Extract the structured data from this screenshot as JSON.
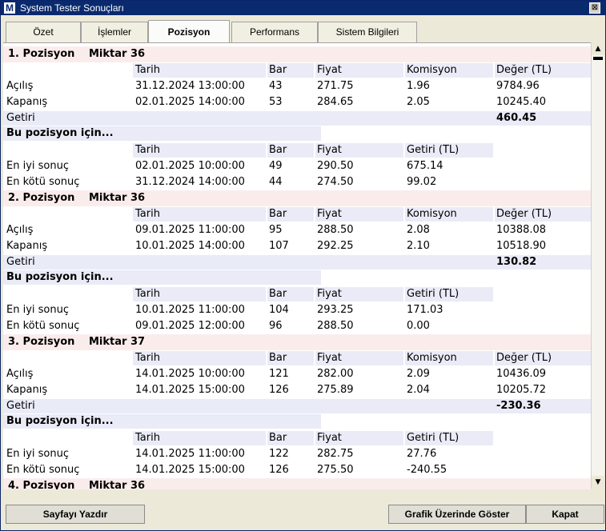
{
  "window": {
    "title": "System Tester Sonuçları",
    "icon_letter": "M",
    "close_glyph": "⊠"
  },
  "tabs": [
    {
      "label": "Özet"
    },
    {
      "label": "İşlemler"
    },
    {
      "label": "Pozisyon"
    },
    {
      "label": "Performans"
    },
    {
      "label": "Sistem Bilgileri"
    }
  ],
  "labels": {
    "miktar": "Miktar",
    "tarih": "Tarih",
    "bar": "Bar",
    "fiyat": "Fiyat",
    "komisyon": "Komisyon",
    "deger": "Değer (TL)",
    "getiri_tl": "Getiri (TL)",
    "acilis": "Açılış",
    "kapanis": "Kapanış",
    "getiri": "Getiri",
    "bu_pozisyon": "Bu pozisyon için...",
    "en_iyi": "En iyi sonuç",
    "en_kotu": "En kötü sonuç"
  },
  "positions": [
    {
      "title": "1. Pozisyon",
      "miktar": "36",
      "acilis": {
        "tarih": "31.12.2024 13:00:00",
        "bar": "43",
        "fiyat": "271.75",
        "komisyon": "1.96",
        "deger": "9784.96"
      },
      "kapanis": {
        "tarih": "02.01.2025 14:00:00",
        "bar": "53",
        "fiyat": "284.65",
        "komisyon": "2.05",
        "deger": "10245.40"
      },
      "getiri": "460.45",
      "en_iyi": {
        "tarih": "02.01.2025 10:00:00",
        "bar": "49",
        "fiyat": "290.50",
        "getiri": "675.14"
      },
      "en_kotu": {
        "tarih": "31.12.2024 14:00:00",
        "bar": "44",
        "fiyat": "274.50",
        "getiri": "99.02"
      }
    },
    {
      "title": "2. Pozisyon",
      "miktar": "36",
      "acilis": {
        "tarih": "09.01.2025 11:00:00",
        "bar": "95",
        "fiyat": "288.50",
        "komisyon": "2.08",
        "deger": "10388.08"
      },
      "kapanis": {
        "tarih": "10.01.2025 14:00:00",
        "bar": "107",
        "fiyat": "292.25",
        "komisyon": "2.10",
        "deger": "10518.90"
      },
      "getiri": "130.82",
      "en_iyi": {
        "tarih": "10.01.2025 11:00:00",
        "bar": "104",
        "fiyat": "293.25",
        "getiri": "171.03"
      },
      "en_kotu": {
        "tarih": "09.01.2025 12:00:00",
        "bar": "96",
        "fiyat": "288.50",
        "getiri": "0.00"
      }
    },
    {
      "title": "3. Pozisyon",
      "miktar": "37",
      "acilis": {
        "tarih": "14.01.2025 10:00:00",
        "bar": "121",
        "fiyat": "282.00",
        "komisyon": "2.09",
        "deger": "10436.09"
      },
      "kapanis": {
        "tarih": "14.01.2025 15:00:00",
        "bar": "126",
        "fiyat": "275.89",
        "komisyon": "2.04",
        "deger": "10205.72"
      },
      "getiri": "-230.36",
      "en_iyi": {
        "tarih": "14.01.2025 11:00:00",
        "bar": "122",
        "fiyat": "282.75",
        "getiri": "27.76"
      },
      "en_kotu": {
        "tarih": "14.01.2025 15:00:00",
        "bar": "126",
        "fiyat": "275.50",
        "getiri": "-240.55"
      }
    },
    {
      "title": "4. Pozisyon",
      "miktar": "36"
    }
  ],
  "buttons": {
    "print": "Sayfayı Yazdır",
    "show_chart": "Grafik Üzerinde Göster",
    "close": "Kapat"
  }
}
